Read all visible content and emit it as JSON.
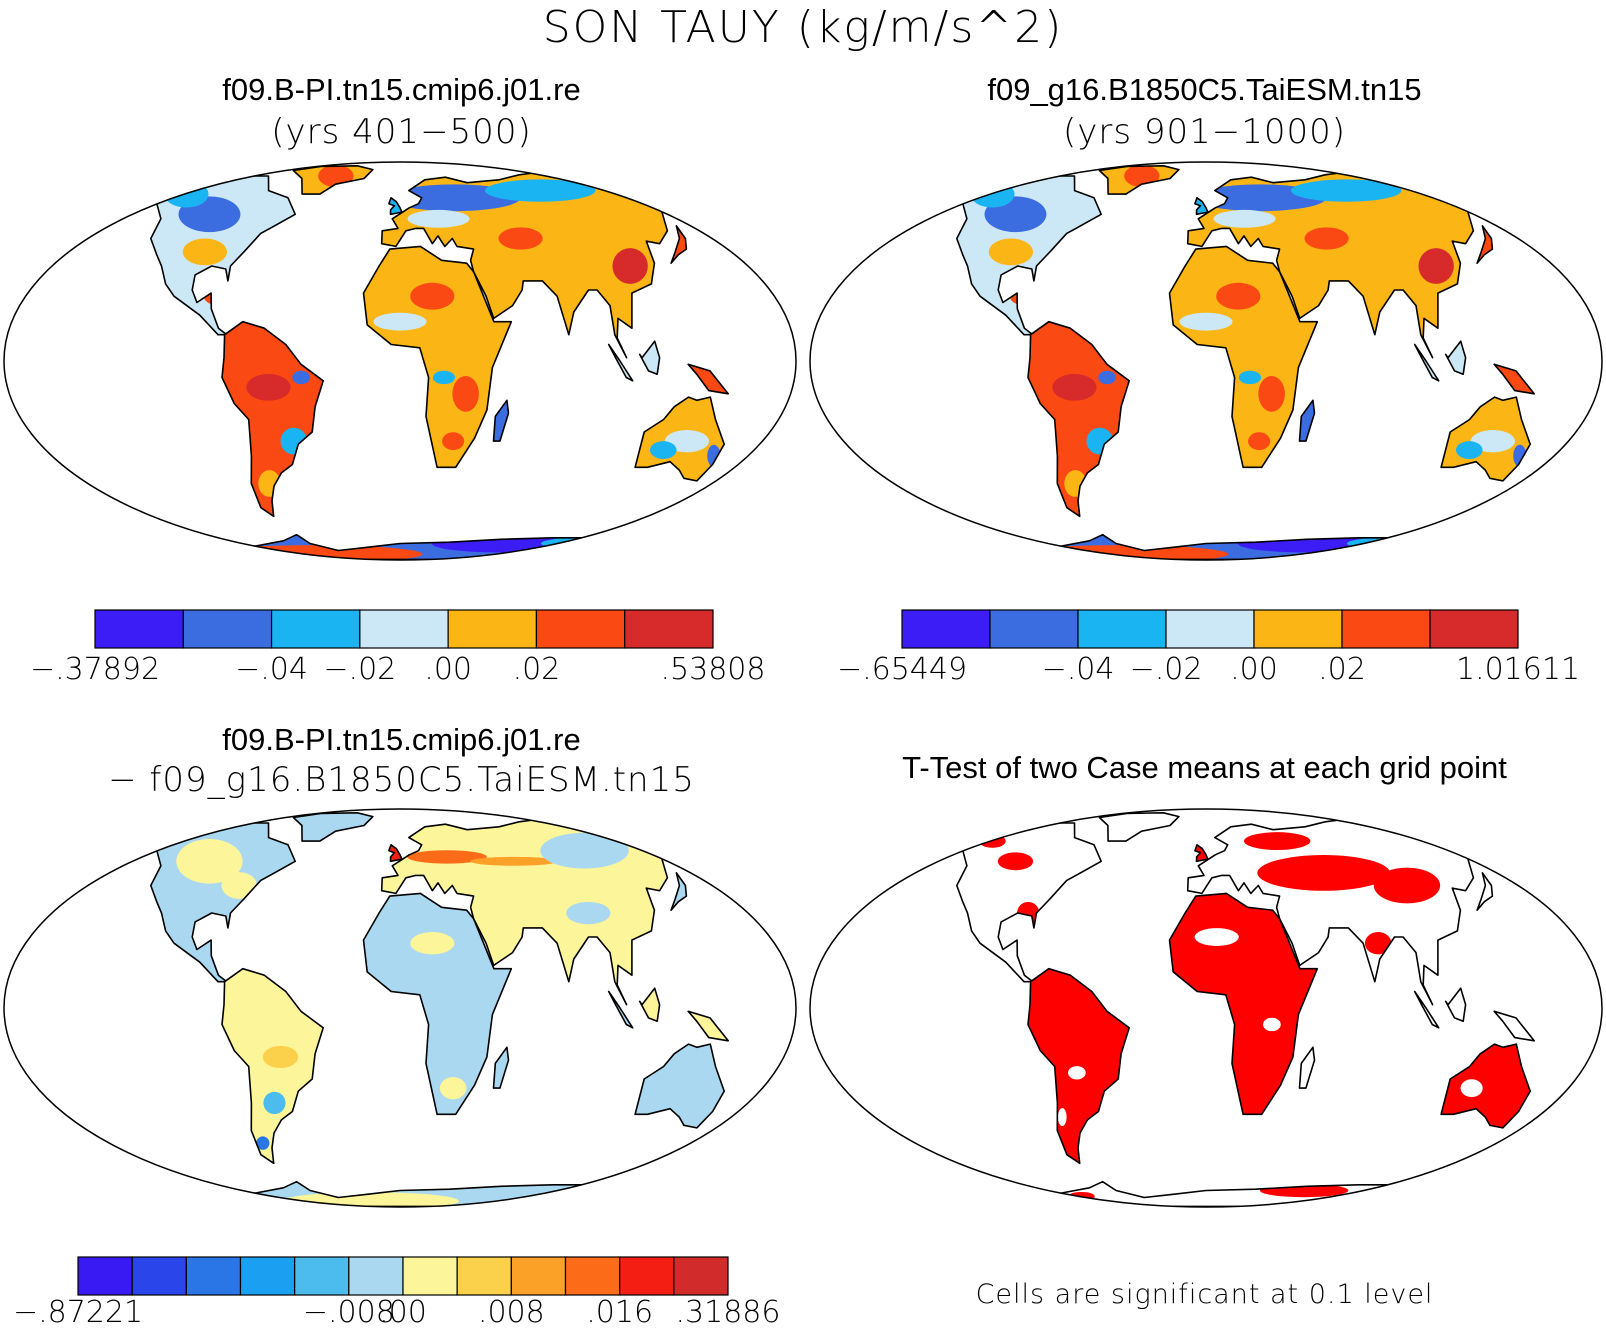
{
  "title": "SON TAUY (kg/m/s^2)",
  "panels": [
    {
      "title": "f09.B-PI.tn15.cmip6.j01.re",
      "subtitle": "(yrs 401−500)",
      "colorbar": {
        "colors": [
          "#3d1df5",
          "#3c6de0",
          "#1ab4f2",
          "#cce8f6",
          "#fbb515",
          "#fb4913",
          "#d72a2a"
        ],
        "labels": [
          "−.37892",
          "−.04",
          "−.02",
          ".00",
          ".02",
          ".53808"
        ],
        "label_at": [
          0,
          2,
          3,
          4,
          5,
          7
        ]
      }
    },
    {
      "title": "f09_g16.B1850C5.TaiESM.tn15",
      "subtitle": "(yrs 901−1000)",
      "colorbar": {
        "colors": [
          "#3d1df5",
          "#3c6de0",
          "#1ab4f2",
          "#cce8f6",
          "#fbb515",
          "#fb4913",
          "#d72a2a"
        ],
        "labels": [
          "−.65449",
          "−.04",
          "−.02",
          ".00",
          ".02",
          "1.01611"
        ],
        "label_at": [
          0,
          2,
          3,
          4,
          5,
          7
        ]
      }
    },
    {
      "title": "f09.B-PI.tn15.cmip6.j01.re",
      "subtitle": "− f09_g16.B1850C5.TaiESM.tn15",
      "colorbar": {
        "colors": [
          "#3a1af2",
          "#2a45ea",
          "#2a76e6",
          "#1b9ff0",
          "#4cbcef",
          "#a9d8f0",
          "#fdf59a",
          "#fbd04a",
          "#fba127",
          "#fb6b18",
          "#f41f12",
          "#d22b2b"
        ],
        "labels": [
          "−.87221",
          "−.008",
          ".00",
          ".008",
          ".016",
          ".31886"
        ],
        "label_at": [
          0,
          5,
          6,
          8,
          10,
          12
        ]
      }
    },
    {
      "title": "T-Test of two Case means at each grid point",
      "note": "Cells are significant at 0.1 level"
    }
  ]
}
